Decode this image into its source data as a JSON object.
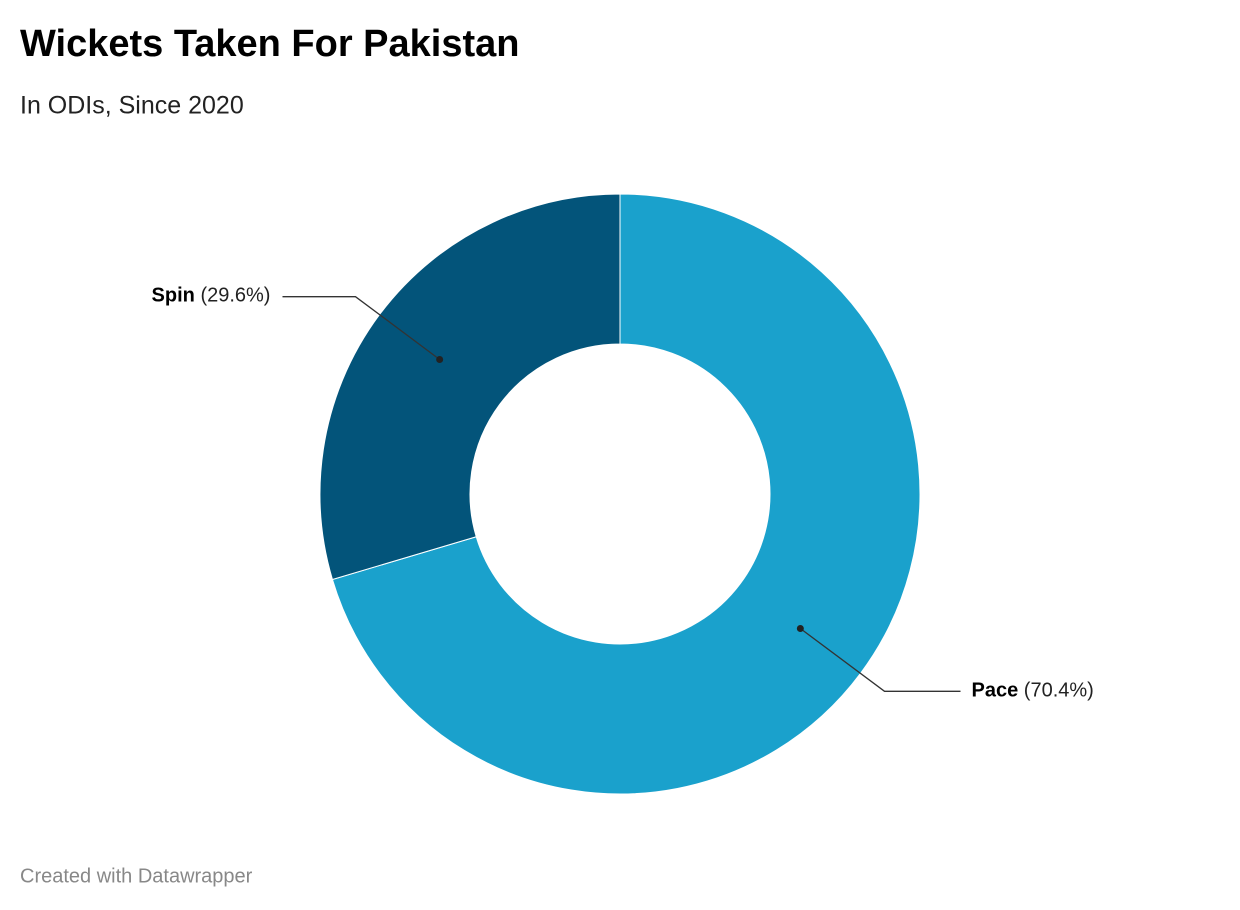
{
  "chart_data": {
    "type": "pie",
    "title": "Wickets Taken For Pakistan",
    "subtitle": "In ODIs, Since 2020",
    "categories": [
      "Pace",
      "Spin"
    ],
    "values": [
      70.4,
      29.6
    ],
    "value_labels": [
      "(70.4%)",
      "(29.6%)"
    ],
    "colors": [
      "#1aa1cc",
      "#03547a"
    ],
    "footer": "Created with Datawrapper"
  }
}
